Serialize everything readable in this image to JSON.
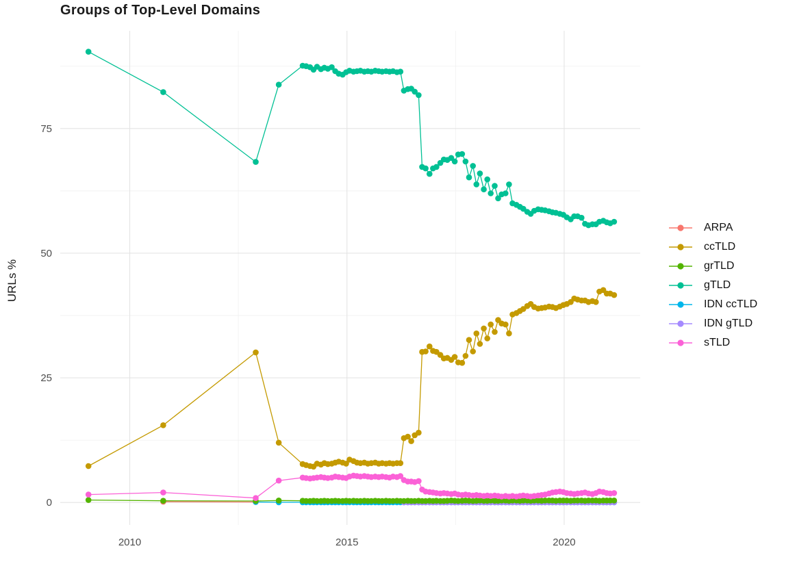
{
  "chart_data": {
    "type": "line",
    "title": "Groups of Top-Level Domains",
    "xlabel": "",
    "ylabel": "URLs %",
    "grid": true,
    "legend_position": "right",
    "xlim": [
      2008.4,
      2021.75
    ],
    "ylim": [
      -4.5,
      94.6
    ],
    "x_major_ticks": [
      2010,
      2015,
      2020
    ],
    "x_minor_gridlines": [
      2012.5,
      2017.5
    ],
    "y_major_ticks": [
      0,
      25,
      50,
      75
    ],
    "y_minor_gridlines": [
      12.5,
      37.5,
      62.5,
      87.5
    ],
    "x": [
      2009.05,
      2010.77,
      2012.9,
      2013.43,
      2013.98,
      2014.06,
      2014.15,
      2014.23,
      2014.31,
      2014.4,
      2014.48,
      2014.56,
      2014.65,
      2014.73,
      2014.81,
      2014.9,
      2014.98,
      2015.06,
      2015.15,
      2015.23,
      2015.31,
      2015.4,
      2015.48,
      2015.56,
      2015.65,
      2015.73,
      2015.81,
      2015.9,
      2015.98,
      2016.06,
      2016.15,
      2016.23,
      2016.31,
      2016.4,
      2016.48,
      2016.56,
      2016.65,
      2016.73,
      2016.81,
      2016.9,
      2016.98,
      2017.06,
      2017.15,
      2017.23,
      2017.31,
      2017.4,
      2017.48,
      2017.56,
      2017.65,
      2017.73,
      2017.81,
      2017.9,
      2017.98,
      2018.06,
      2018.15,
      2018.23,
      2018.31,
      2018.4,
      2018.48,
      2018.56,
      2018.65,
      2018.73,
      2018.81,
      2018.9,
      2018.98,
      2019.06,
      2019.15,
      2019.23,
      2019.31,
      2019.4,
      2019.48,
      2019.56,
      2019.65,
      2019.73,
      2019.81,
      2019.9,
      2019.98,
      2020.06,
      2020.15,
      2020.23,
      2020.31,
      2020.4,
      2020.48,
      2020.56,
      2020.65,
      2020.73,
      2020.81,
      2020.9,
      2020.98,
      2021.06,
      2021.15
    ],
    "series": [
      {
        "name": "ARPA",
        "color": "#F8766D",
        "values": [
          null,
          0.15,
          0.1,
          null,
          null,
          null,
          null,
          null,
          null,
          null,
          null,
          null,
          null,
          null,
          null,
          null,
          null,
          null,
          null,
          null,
          null,
          null,
          null,
          null,
          null,
          null,
          null,
          null,
          null,
          null,
          null,
          null,
          null,
          null,
          null,
          null,
          null,
          null,
          null,
          null,
          null,
          null,
          null,
          null,
          null,
          null,
          null,
          null,
          null,
          null,
          null,
          null,
          null,
          null,
          null,
          null,
          null,
          null,
          null,
          null,
          null,
          null,
          null,
          null,
          null,
          null,
          null,
          null,
          null,
          null,
          null,
          null,
          null,
          null,
          null,
          null,
          null,
          null,
          null,
          null,
          null,
          null,
          null,
          null,
          null,
          null,
          null,
          null,
          null,
          null,
          null
        ]
      },
      {
        "name": "ccTLD",
        "color": "#C49A00",
        "values": [
          7.3,
          15.5,
          30.1,
          12.0,
          7.7,
          7.5,
          7.3,
          7.2,
          7.8,
          7.6,
          7.9,
          7.7,
          7.8,
          8.0,
          8.2,
          8.0,
          7.8,
          8.6,
          8.3,
          8.0,
          7.9,
          8.0,
          7.8,
          7.9,
          8.0,
          7.8,
          7.9,
          7.8,
          7.9,
          7.8,
          7.9,
          7.9,
          12.9,
          13.2,
          12.3,
          13.5,
          14.0,
          30.2,
          30.3,
          31.3,
          30.4,
          30.2,
          29.6,
          28.9,
          29.0,
          28.6,
          29.2,
          28.1,
          28.0,
          29.4,
          32.6,
          30.3,
          33.9,
          31.8,
          34.9,
          32.9,
          35.7,
          34.2,
          36.6,
          35.9,
          35.7,
          33.9,
          37.7,
          38.0,
          38.4,
          38.8,
          39.4,
          39.8,
          39.2,
          38.9,
          39.0,
          39.1,
          39.3,
          39.2,
          39.0,
          39.3,
          39.6,
          39.8,
          40.2,
          40.9,
          40.7,
          40.5,
          40.5,
          40.2,
          40.4,
          40.2,
          42.3,
          42.6,
          41.9,
          41.9,
          41.6
        ]
      },
      {
        "name": "grTLD",
        "color": "#53B400",
        "values": [
          0.5,
          0.35,
          0.3,
          0.4,
          0.35,
          0.3,
          0.3,
          0.35,
          0.3,
          0.3,
          0.35,
          0.3,
          0.3,
          0.35,
          0.3,
          0.3,
          0.35,
          0.3,
          0.35,
          0.3,
          0.3,
          0.35,
          0.3,
          0.3,
          0.35,
          0.3,
          0.3,
          0.35,
          0.3,
          0.3,
          0.35,
          0.3,
          0.3,
          0.35,
          0.3,
          0.3,
          0.35,
          0.3,
          0.3,
          0.35,
          0.3,
          0.35,
          0.3,
          0.3,
          0.35,
          0.4,
          0.35,
          0.3,
          0.35,
          0.4,
          0.35,
          0.3,
          0.35,
          0.4,
          0.35,
          0.35,
          0.4,
          0.35,
          0.35,
          0.4,
          0.4,
          0.35,
          0.4,
          0.4,
          0.35,
          0.4,
          0.4,
          0.35,
          0.4,
          0.4,
          0.35,
          0.4,
          0.4,
          0.4,
          0.35,
          0.4,
          0.4,
          0.4,
          0.35,
          0.4,
          0.4,
          0.4,
          0.35,
          0.4,
          0.4,
          0.4,
          0.35,
          0.4,
          0.4,
          0.4,
          0.4
        ]
      },
      {
        "name": "gTLD",
        "color": "#00C094",
        "values": [
          90.4,
          82.3,
          68.3,
          83.8,
          87.6,
          87.5,
          87.3,
          86.8,
          87.4,
          86.9,
          87.2,
          87.0,
          87.3,
          86.5,
          86.0,
          85.8,
          86.3,
          86.6,
          86.4,
          86.5,
          86.6,
          86.4,
          86.5,
          86.4,
          86.6,
          86.5,
          86.4,
          86.5,
          86.4,
          86.5,
          86.3,
          86.4,
          82.6,
          82.9,
          83.0,
          82.4,
          81.7,
          67.3,
          67.0,
          65.9,
          67.0,
          67.3,
          68.1,
          68.8,
          68.7,
          69.1,
          68.4,
          69.8,
          69.9,
          68.4,
          65.2,
          67.5,
          63.8,
          66.0,
          62.8,
          64.8,
          62.0,
          63.5,
          61.0,
          61.8,
          62.0,
          63.8,
          60.0,
          59.7,
          59.3,
          58.9,
          58.3,
          57.9,
          58.5,
          58.8,
          58.7,
          58.6,
          58.4,
          58.2,
          58.1,
          57.9,
          57.7,
          57.2,
          56.8,
          57.4,
          57.4,
          57.1,
          55.9,
          55.6,
          55.8,
          55.8,
          56.3,
          56.5,
          56.2,
          56.0,
          56.3
        ]
      },
      {
        "name": "IDN ccTLD",
        "color": "#00B6EB",
        "values": [
          null,
          null,
          0.1,
          0.05,
          0.05,
          0.05,
          0.05,
          0.05,
          0.05,
          0.05,
          0.05,
          0.05,
          0.05,
          0.05,
          0.05,
          0.05,
          0.05,
          0.05,
          0.05,
          0.05,
          0.05,
          0.05,
          0.05,
          0.05,
          0.05,
          0.05,
          0.05,
          0.05,
          0.05,
          0.05,
          0.05,
          0.05,
          0.05,
          0.05,
          0.05,
          0.05,
          0.05,
          0.05,
          0.05,
          0.05,
          0.05,
          0.05,
          0.05,
          0.05,
          0.05,
          0.05,
          0.05,
          0.05,
          0.05,
          0.05,
          0.05,
          0.05,
          0.05,
          0.05,
          0.05,
          0.05,
          0.05,
          0.05,
          0.05,
          0.05,
          0.05,
          0.05,
          0.05,
          0.05,
          0.05,
          0.05,
          0.05,
          0.05,
          0.05,
          0.05,
          0.05,
          0.05,
          0.05,
          0.05,
          0.05,
          0.05,
          0.05,
          0.05,
          0.05,
          0.05,
          0.05,
          0.05,
          0.05,
          0.05,
          0.05,
          0.05,
          0.05,
          0.05,
          0.05,
          0.05,
          0.05
        ]
      },
      {
        "name": "IDN gTLD",
        "color": "#A58AFF",
        "values": [
          null,
          null,
          null,
          null,
          null,
          null,
          null,
          null,
          null,
          null,
          null,
          null,
          null,
          null,
          null,
          null,
          null,
          null,
          null,
          null,
          null,
          null,
          null,
          null,
          null,
          null,
          null,
          null,
          null,
          null,
          null,
          null,
          0.05,
          0.05,
          0.05,
          0.05,
          0.05,
          0.05,
          0.05,
          0.05,
          0.05,
          0.05,
          0.05,
          0.05,
          0.05,
          0.05,
          0.05,
          0.05,
          0.05,
          0.05,
          0.05,
          0.05,
          0.05,
          0.05,
          0.05,
          0.05,
          0.05,
          0.05,
          0.05,
          0.05,
          0.05,
          0.05,
          0.05,
          0.05,
          0.05,
          0.05,
          0.05,
          0.05,
          0.05,
          0.05,
          0.05,
          0.05,
          0.05,
          0.05,
          0.05,
          0.05,
          0.05,
          0.05,
          0.05,
          0.05,
          0.05,
          0.05,
          0.05,
          0.05,
          0.05,
          0.05,
          0.05,
          0.05,
          0.05,
          0.05,
          0.05
        ]
      },
      {
        "name": "sTLD",
        "color": "#FB61D7",
        "values": [
          1.6,
          2.0,
          0.9,
          4.4,
          5.0,
          4.9,
          4.8,
          4.9,
          5.0,
          5.1,
          5.0,
          4.9,
          5.0,
          5.2,
          5.1,
          5.0,
          4.9,
          5.2,
          5.4,
          5.3,
          5.2,
          5.3,
          5.2,
          5.1,
          5.2,
          5.1,
          5.2,
          5.1,
          5.0,
          5.2,
          5.1,
          5.3,
          4.5,
          4.2,
          4.2,
          4.1,
          4.3,
          2.6,
          2.2,
          2.1,
          2.0,
          1.9,
          1.8,
          1.9,
          1.8,
          1.7,
          1.8,
          1.6,
          1.5,
          1.6,
          1.5,
          1.4,
          1.5,
          1.4,
          1.3,
          1.4,
          1.3,
          1.4,
          1.3,
          1.2,
          1.3,
          1.2,
          1.3,
          1.2,
          1.3,
          1.4,
          1.3,
          1.2,
          1.3,
          1.4,
          1.5,
          1.6,
          1.8,
          2.0,
          2.1,
          2.2,
          2.1,
          1.9,
          1.8,
          1.7,
          1.8,
          1.9,
          2.0,
          1.8,
          1.7,
          1.9,
          2.2,
          2.1,
          1.9,
          1.8,
          1.9
        ]
      }
    ],
    "draw_order": [
      "ARPA",
      "IDN ccTLD",
      "IDN gTLD",
      "grTLD",
      "ccTLD",
      "gTLD",
      "sTLD"
    ]
  }
}
